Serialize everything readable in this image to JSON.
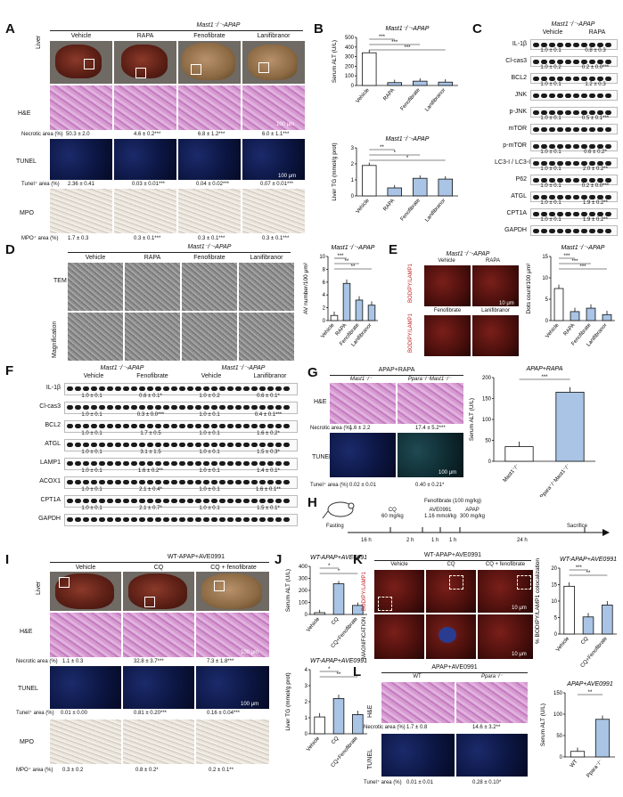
{
  "panelA": {
    "letter": "A",
    "header": "Mast1⁻/⁻-APAP",
    "groups": [
      "Vehicle",
      "RAPA",
      "Fenofibrate",
      "Lanifibranor"
    ],
    "row_labels": [
      "Liver",
      "H&E",
      "TUNEL",
      "MPO"
    ],
    "necrotic_row": {
      "label": "Necrotic area (%)",
      "values": [
        "50.3 ± 2.0",
        "4.6 ± 0.2***",
        "6.8 ± 1.2***",
        "6.0 ± 1.1***"
      ]
    },
    "tunel_row": {
      "label": "Tunel⁺ area (%)",
      "values": [
        "2.36 ± 0.41",
        "0.03 ± 0.01***",
        "0.04 ± 0.02***",
        "0.07 ± 0.01***"
      ]
    },
    "mpo_row": {
      "label": "MPO⁺ area (%)",
      "values": [
        "1.7 ± 0.3",
        "0.3 ± 0.1***",
        "0.3 ± 0.1***",
        "0.3 ± 0.1***"
      ]
    },
    "scale_he": "100 μm",
    "scale_tunel": "100 μm"
  },
  "panelB": {
    "letter": "B",
    "chart_data": [
      {
        "type": "bar",
        "title": "Mast1⁻/⁻-APAP",
        "ylabel": "Serum ALT (U/L)",
        "categories": [
          "Vehicle",
          "RAPA",
          "Fenofibrate",
          "Lanifibranor"
        ],
        "values": [
          340,
          30,
          45,
          35
        ],
        "ylim": [
          0,
          500
        ],
        "yticks": [
          "0",
          "100",
          "200",
          "300",
          "400",
          "500"
        ],
        "sig": [
          "***",
          "***",
          "***"
        ]
      },
      {
        "type": "bar",
        "title": "Mast1⁻/⁻-APAP",
        "ylabel": "Liver TG (mmol/g prot)",
        "categories": [
          "Vehicle",
          "RAPA",
          "Fenofibrate",
          "Lanifibranor"
        ],
        "values": [
          1.9,
          0.5,
          1.1,
          1.05
        ],
        "ylim": [
          0,
          3
        ],
        "yticks": [
          "0",
          "1",
          "2",
          "3"
        ],
        "sig": [
          "**",
          "*",
          "*"
        ]
      }
    ]
  },
  "panelC": {
    "letter": "C",
    "header": "Mast1⁻/⁻-APAP",
    "groups": [
      "Vehicle",
      "RAPA"
    ],
    "blots": [
      {
        "name": "IL-1β",
        "quant": [
          "1.0 ± 0.1",
          "0.8 ± 0.3"
        ]
      },
      {
        "name": "Cl-cas3",
        "quant": [
          "1.0 ± 0.2",
          "0.2 ± 0.0***"
        ]
      },
      {
        "name": "BCL2",
        "quant": [
          "1.0 ± 0.1",
          "1.2 ± 0.3"
        ]
      },
      {
        "name": "JNK",
        "quant": []
      },
      {
        "name": "p-JNK",
        "quant": [
          "1.0 ± 0.1",
          "0.5 ± 0.1***"
        ]
      },
      {
        "name": "mTOR",
        "quant": []
      },
      {
        "name": "p-mTOR",
        "quant": [
          "1.0 ± 0.1",
          "0.6 ± 0.2*"
        ]
      },
      {
        "name": "LC3-I / LC3-II",
        "quant": [
          "1.0 ± 0.1",
          "2.0 ± 0.2**"
        ]
      },
      {
        "name": "P62",
        "quant": [
          "1.0 ± 0.1",
          "0.2 ± 0.0***"
        ]
      },
      {
        "name": "ATGL",
        "quant": [
          "1.0 ± 0.1",
          "1.9 ± 0.2**"
        ]
      },
      {
        "name": "CPT1A",
        "quant": [
          "1.0 ± 0.1",
          "1.9 ± 0.2**"
        ]
      },
      {
        "name": "GAPDH",
        "quant": []
      }
    ]
  },
  "panelD": {
    "letter": "D",
    "header": "Mast1⁻/⁻-APAP",
    "groups": [
      "Vehicle",
      "RAPA",
      "Fenofibrate",
      "Lanifibranor"
    ],
    "row_labels": [
      "TEM",
      "Magnification"
    ],
    "chart_data": {
      "type": "bar",
      "title": "Mast1⁻/⁻-APAP",
      "ylabel": "AV number/100 μm²",
      "categories": [
        "Vehicle",
        "RAPA",
        "Fenofibrate",
        "Lanifibranor"
      ],
      "values": [
        0.8,
        5.8,
        3.2,
        2.4
      ],
      "ylim": [
        0,
        10
      ],
      "yticks": [
        "0",
        "2",
        "4",
        "6",
        "8",
        "10"
      ],
      "sig": [
        "***",
        "**",
        "**"
      ]
    }
  },
  "panelE": {
    "letter": "E",
    "header": "Mast1⁻/⁻-APAP",
    "groups": [
      "Vehicle",
      "RAPA",
      "Fenofibrate",
      "Lanifibranor"
    ],
    "stain": "BODIPY/LAMP1",
    "scale": "10 μm",
    "chart_data": {
      "type": "bar",
      "title": "Mast1⁻/⁻-APAP",
      "ylabel": "Dots count/100 μm²",
      "categories": [
        "Vehicle",
        "RAPA",
        "Fenofibrate",
        "Lanifibranor"
      ],
      "values": [
        7.5,
        2.1,
        2.9,
        1.4
      ],
      "ylim": [
        0,
        15
      ],
      "yticks": [
        "0",
        "5",
        "10",
        "15"
      ],
      "sig": [
        "***",
        "***",
        "***"
      ]
    }
  },
  "panelF": {
    "letter": "F",
    "headers": [
      "Mast1⁻/⁻-APAP",
      "Mast1⁻/⁻-APAP"
    ],
    "groups": [
      "Vehicle",
      "Fenofibrate",
      "Vehicle",
      "Lanifibranor"
    ],
    "blots": [
      {
        "name": "IL-1β",
        "quant": [
          "1.0 ± 0.1",
          "0.6 ± 0.1*",
          "1.0 ± 0.2",
          "0.6 ± 0.1*"
        ]
      },
      {
        "name": "Cl-cas3",
        "quant": [
          "1.0 ± 0.1",
          "0.3 ± 0.0***",
          "1.0 ± 0.1",
          "0.4 ± 0.1***"
        ]
      },
      {
        "name": "BCL2",
        "quant": [
          "1.0 ± 0.1",
          "1.7 ± 0.5",
          "1.0 ± 0.1",
          "1.6 ± 0.2*"
        ]
      },
      {
        "name": "ATGL",
        "quant": [
          "1.0 ± 0.1",
          "3.1 ± 1.5",
          "1.0 ± 0.1",
          "1.5 ± 0.3*"
        ]
      },
      {
        "name": "LAMP1",
        "quant": [
          "1.0 ± 0.1",
          "1.6 ± 0.2**",
          "1.0 ± 0.1",
          "1.4 ± 0.1*"
        ]
      },
      {
        "name": "ACOX1",
        "quant": [
          "1.0 ± 0.1",
          "2.1 ± 0.4*",
          "1.0 ± 0.1",
          "1.6 ± 0.1**"
        ]
      },
      {
        "name": "CPT1A",
        "quant": [
          "1.0 ± 0.1",
          "2.1 ± 0.7*",
          "1.0 ± 0.1",
          "1.5 ± 0.1*"
        ]
      },
      {
        "name": "GAPDH",
        "quant": []
      }
    ]
  },
  "panelG": {
    "letter": "G",
    "header": "APAP+RAPA",
    "groups": [
      "Mast1⁻/⁻",
      "Ppara⁻/⁻Mast1⁻/⁻"
    ],
    "row_labels": [
      "H&E",
      "TUNEL"
    ],
    "necrotic_row": {
      "label": "Necrotic area (%)",
      "values": [
        "1.6 ± 2.2",
        "17.4 ± 5.2***"
      ]
    },
    "tunel_row": {
      "label": "Tunel⁺ area (%)",
      "values": [
        "0.02 ± 0.01",
        "0.40 ± 0.21*"
      ]
    },
    "scale": "100 μm",
    "chart_data": {
      "type": "bar",
      "title": "APAP+RAPA",
      "ylabel": "Serum ALT (U/L)",
      "categories": [
        "Mast1⁻/⁻",
        "Ppara⁻/⁻Mast1⁻/⁻"
      ],
      "values": [
        35,
        165
      ],
      "ylim": [
        0,
        200
      ],
      "yticks": [
        "0",
        "50",
        "100",
        "150",
        "200"
      ],
      "sig": [
        "***"
      ]
    }
  },
  "panelH": {
    "letter": "H",
    "steps_top": [
      "Fenofibrate (100 mg/kg)"
    ],
    "steps": [
      "Fasting",
      "CQ\n60 mg/kg",
      "AVE0991\n1.16 mmol/kg",
      "APAP\n300 mg/kg",
      "Sacrifice"
    ],
    "durations": [
      "16 h",
      "2 h",
      "1 h",
      "1 h",
      "24 h"
    ]
  },
  "panelI": {
    "letter": "I",
    "header": "WT-APAP+AVE0991",
    "groups": [
      "Vehicle",
      "CQ",
      "CQ + fenofibrate"
    ],
    "row_labels": [
      "Liver",
      "H&E",
      "TUNEL",
      "MPO"
    ],
    "necrotic_row": {
      "label": "Necrotic area (%)",
      "values": [
        "1.1 ± 0.3",
        "32.8 ± 3.7***",
        "7.3 ± 1.8***"
      ]
    },
    "tunel_row": {
      "label": "Tunel⁺ area (%)",
      "values": [
        "0.01 ± 0.00",
        "0.81 ± 0.20***",
        "0.16 ± 0.04***"
      ]
    },
    "mpo_row": {
      "label": "MPO⁺ area (%)",
      "values": [
        "0.3 ± 0.2",
        "0.8 ± 0.2*",
        "0.2 ± 0.1**"
      ]
    },
    "scale": "100 μm"
  },
  "panelJ": {
    "letter": "J",
    "chart_data": [
      {
        "type": "bar",
        "title": "WT-APAP+AVE0991",
        "ylabel": "Serum ALT (U/L)",
        "categories": [
          "Vehicle",
          "CQ",
          "CQ+Fenofibrate"
        ],
        "values": [
          15,
          255,
          75
        ],
        "ylim": [
          0,
          400
        ],
        "yticks": [
          "0",
          "100",
          "200",
          "300",
          "400"
        ],
        "sig": [
          "*",
          "*"
        ]
      },
      {
        "type": "bar",
        "title": "WT-APAP+AVE0991",
        "ylabel": "Liver TG (mmol/g prot)",
        "categories": [
          "Vehicle",
          "CQ",
          "CQ+Fenofibrate"
        ],
        "values": [
          1.05,
          2.2,
          1.2
        ],
        "ylim": [
          0,
          4
        ],
        "yticks": [
          "0",
          "1",
          "2",
          "3",
          "4"
        ],
        "sig": [
          "*",
          "**"
        ]
      }
    ]
  },
  "panelK": {
    "letter": "K",
    "header": "WT-APAP+AVE0991",
    "groups": [
      "Vehicle",
      "CQ",
      "CQ + fenofibrate"
    ],
    "row_labels": [
      "BODIPY/LAMP1",
      "MAGNIFICATION"
    ],
    "scale": "10 μm",
    "chart_data": {
      "type": "bar",
      "title": "WT-APAP+AVE0991",
      "ylabel": "% BODIPY/LAMP1 colocalization",
      "categories": [
        "Vehicle",
        "CQ",
        "CQ+Fenofibrate"
      ],
      "values": [
        14.5,
        5.2,
        8.8
      ],
      "ylim": [
        0,
        20
      ],
      "yticks": [
        "0",
        "5",
        "10",
        "15",
        "20"
      ],
      "sig": [
        "***",
        "**"
      ]
    }
  },
  "panelL": {
    "letter": "L",
    "header": "APAP+AVE0991",
    "groups": [
      "WT",
      "Ppara⁻/⁻"
    ],
    "row_labels": [
      "H&E",
      "TUNEL"
    ],
    "necrotic_row": {
      "label": "Necrotic area (%)",
      "values": [
        "1.7 ± 0.8",
        "14.6 ± 3.2**"
      ]
    },
    "tunel_row": {
      "label": "Tunel⁺ area (%)",
      "values": [
        "0.01 ± 0.01",
        "0.28 ± 0.10*"
      ]
    },
    "chart_data": {
      "type": "bar",
      "title": "APAP+AVE0991",
      "ylabel": "Serum ALT (U/L)",
      "categories": [
        "WT",
        "Ppara⁻/⁻"
      ],
      "values": [
        13,
        88
      ],
      "ylim": [
        0,
        150
      ],
      "yticks": [
        "0",
        "50",
        "100",
        "150"
      ],
      "sig": [
        "**"
      ]
    }
  }
}
